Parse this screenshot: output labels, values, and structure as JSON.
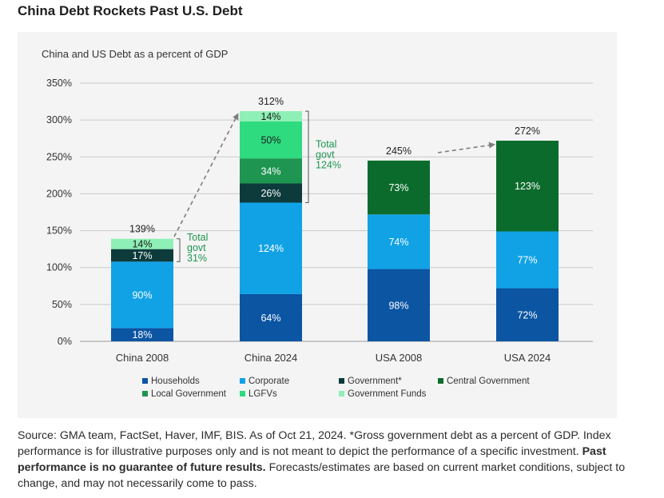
{
  "page": {
    "title": "China Debt Rockets Past U.S. Debt",
    "footer_text_1": "Source: GMA team, FactSet, Haver, IMF, BIS. As of Oct 21, 2024. *Gross government debt as a percent of GDP. Index performance is for illustrative purposes only and is not meant to depict the performance of a specific investment.",
    "footer_bold": "Past performance is no guarantee of future results.",
    "footer_text_2": "Forecasts/estimates are based on current market conditions, subject to change, and may not necessarily come to pass."
  },
  "chart_data": {
    "type": "bar",
    "stacked": true,
    "title": "China and US Debt as a percent of GDP",
    "categories": [
      "China 2008",
      "China 2024",
      "USA 2008",
      "USA 2024"
    ],
    "ylim": [
      0,
      350
    ],
    "yticks": [
      0,
      50,
      100,
      150,
      200,
      250,
      300,
      350
    ],
    "ytick_labels": [
      "0%",
      "50%",
      "100%",
      "150%",
      "200%",
      "250%",
      "300%",
      "350%"
    ],
    "grid": true,
    "legend_position": "bottom",
    "totals": [
      139,
      312,
      245,
      272
    ],
    "total_labels": [
      "139%",
      "312%",
      "245%",
      "272%"
    ],
    "series": [
      {
        "name": "Households",
        "color": "#0b55a3",
        "values": [
          18,
          64,
          98,
          72
        ],
        "labels": [
          "18%",
          "64%",
          "98%",
          "72%"
        ]
      },
      {
        "name": "Corporate",
        "color": "#11a2e6",
        "values": [
          90,
          124,
          74,
          77
        ],
        "labels": [
          "90%",
          "124%",
          "74%",
          "77%"
        ]
      },
      {
        "name": "Government*",
        "color": "#0d3b3c",
        "values": [
          17,
          26,
          0,
          0
        ],
        "labels": [
          "17%",
          "26%",
          "",
          ""
        ]
      },
      {
        "name": "Central Government",
        "color": "#0b6b2c",
        "values": [
          0,
          0,
          73,
          123
        ],
        "labels": [
          "",
          "",
          "73%",
          "123%"
        ]
      },
      {
        "name": "Local Government",
        "color": "#1e9551",
        "values": [
          0,
          34,
          0,
          0
        ],
        "labels": [
          "",
          "34%",
          "",
          ""
        ]
      },
      {
        "name": "LGFVs",
        "color": "#2fdb7f",
        "values": [
          0,
          50,
          0,
          0
        ],
        "labels": [
          "",
          "50%",
          "",
          ""
        ]
      },
      {
        "name": "Government Funds",
        "color": "#8ef0b6",
        "values": [
          14,
          14,
          0,
          0
        ],
        "labels": [
          "14%",
          "14%",
          "",
          ""
        ]
      }
    ],
    "annotations": [
      {
        "category": "China 2008",
        "lines": [
          "Total",
          "govt",
          "31%"
        ],
        "color": "#1e9551"
      },
      {
        "category": "China 2024",
        "lines": [
          "Total",
          "govt",
          "124%"
        ],
        "color": "#1e9551"
      }
    ],
    "arrows": [
      {
        "from": "China 2008",
        "to": "China 2024"
      },
      {
        "from": "USA 2008",
        "to": "USA 2024"
      }
    ]
  }
}
